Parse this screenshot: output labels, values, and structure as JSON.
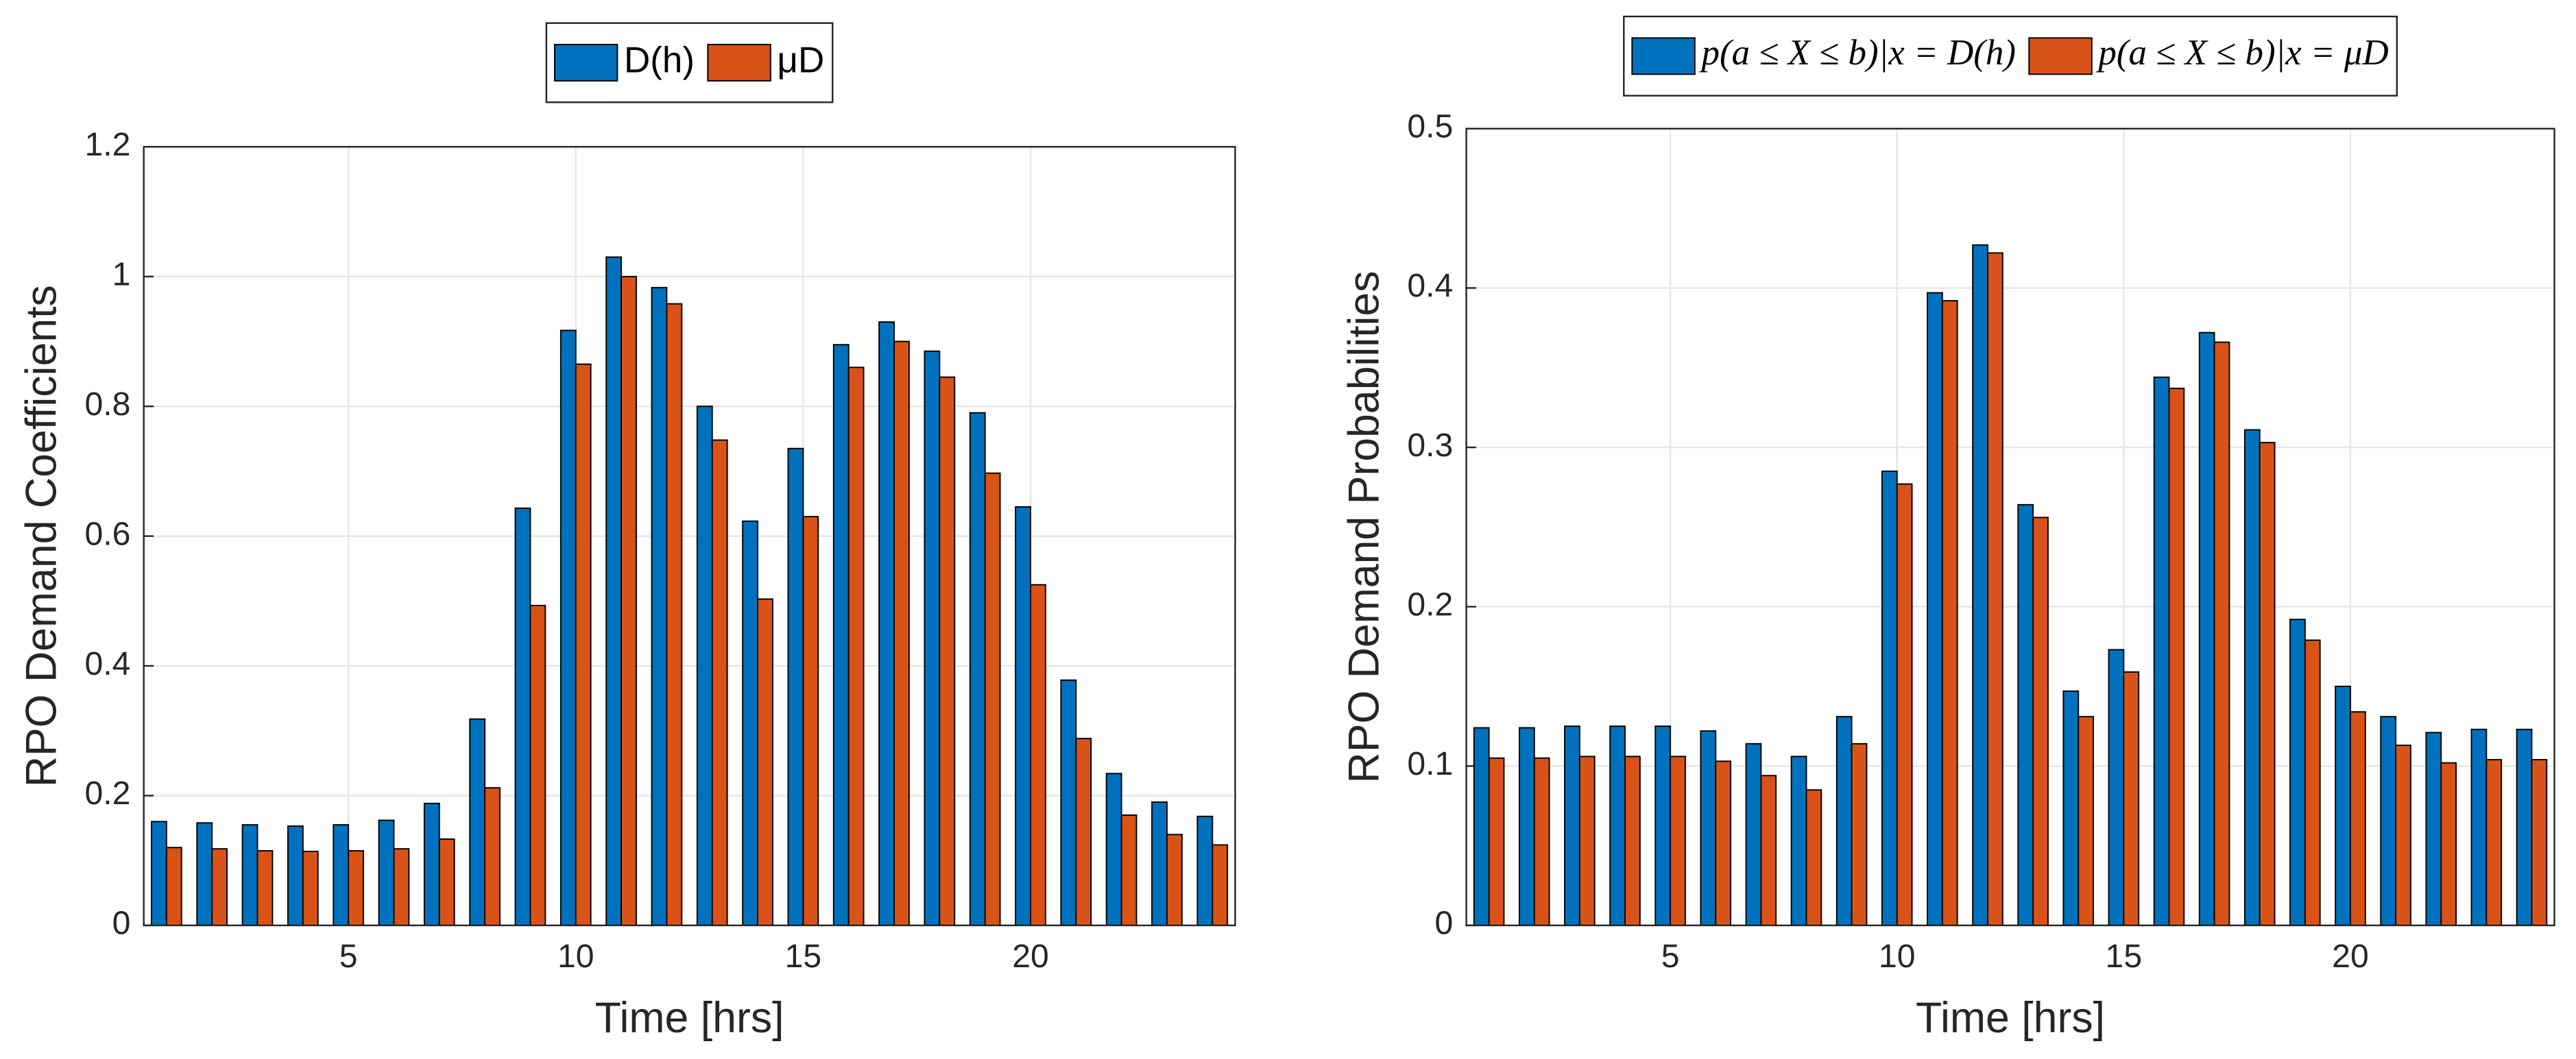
{
  "chart_data": [
    {
      "type": "bar",
      "xlabel": "Time [hrs]",
      "ylabel": "RPO Demand Coefficients",
      "x": [
        1,
        2,
        3,
        4,
        5,
        6,
        7,
        8,
        9,
        10,
        11,
        12,
        13,
        14,
        15,
        16,
        17,
        18,
        19,
        20,
        21,
        22,
        23,
        24
      ],
      "series": [
        {
          "name": "D(h)",
          "color": "#0072bd",
          "values": [
            0.16,
            0.158,
            0.155,
            0.153,
            0.155,
            0.162,
            0.188,
            0.318,
            0.643,
            0.917,
            1.03,
            0.983,
            0.8,
            0.623,
            0.735,
            0.895,
            0.93,
            0.885,
            0.79,
            0.645,
            0.378,
            0.234,
            0.19,
            0.168
          ]
        },
        {
          "name": "μD",
          "color": "#d95319",
          "values": [
            0.12,
            0.118,
            0.115,
            0.114,
            0.115,
            0.118,
            0.133,
            0.212,
            0.493,
            0.865,
            1.0,
            0.958,
            0.748,
            0.503,
            0.63,
            0.86,
            0.9,
            0.845,
            0.697,
            0.525,
            0.288,
            0.17,
            0.14,
            0.124
          ]
        }
      ],
      "xlim": [
        0.5,
        24.5
      ],
      "xticks": [
        5,
        10,
        15,
        20
      ],
      "ylim": [
        0,
        1.2
      ],
      "yticks": [
        0,
        0.2,
        0.4,
        0.6,
        0.8,
        1,
        1.2
      ],
      "grid": true,
      "legend": "top"
    },
    {
      "type": "bar",
      "xlabel": "Time [hrs]",
      "ylabel": "RPO Demand Probabilities",
      "x": [
        1,
        2,
        3,
        4,
        5,
        6,
        7,
        8,
        9,
        10,
        11,
        12,
        13,
        14,
        15,
        16,
        17,
        18,
        19,
        20,
        21,
        22,
        23,
        24
      ],
      "series": [
        {
          "name": "p(a ≤ X ≤ b)|x = D(h)",
          "color": "#0072bd",
          "values": [
            0.124,
            0.124,
            0.125,
            0.125,
            0.125,
            0.122,
            0.114,
            0.106,
            0.131,
            0.285,
            0.397,
            0.427,
            0.264,
            0.147,
            0.173,
            0.344,
            0.372,
            0.311,
            0.192,
            0.15,
            0.131,
            0.121,
            0.123,
            0.123
          ]
        },
        {
          "name": "p(a ≤ X ≤ b)|x = μD",
          "color": "#d95319",
          "values": [
            0.105,
            0.105,
            0.106,
            0.106,
            0.106,
            0.103,
            0.094,
            0.085,
            0.114,
            0.277,
            0.392,
            0.422,
            0.256,
            0.131,
            0.159,
            0.337,
            0.366,
            0.303,
            0.179,
            0.134,
            0.113,
            0.102,
            0.104,
            0.104
          ]
        }
      ],
      "xlim": [
        0.5,
        24.5
      ],
      "xticks": [
        5,
        10,
        15,
        20
      ],
      "ylim": [
        0,
        0.5
      ],
      "yticks": [
        0,
        0.1,
        0.2,
        0.3,
        0.4,
        0.5
      ],
      "grid": true,
      "legend": "top"
    }
  ]
}
